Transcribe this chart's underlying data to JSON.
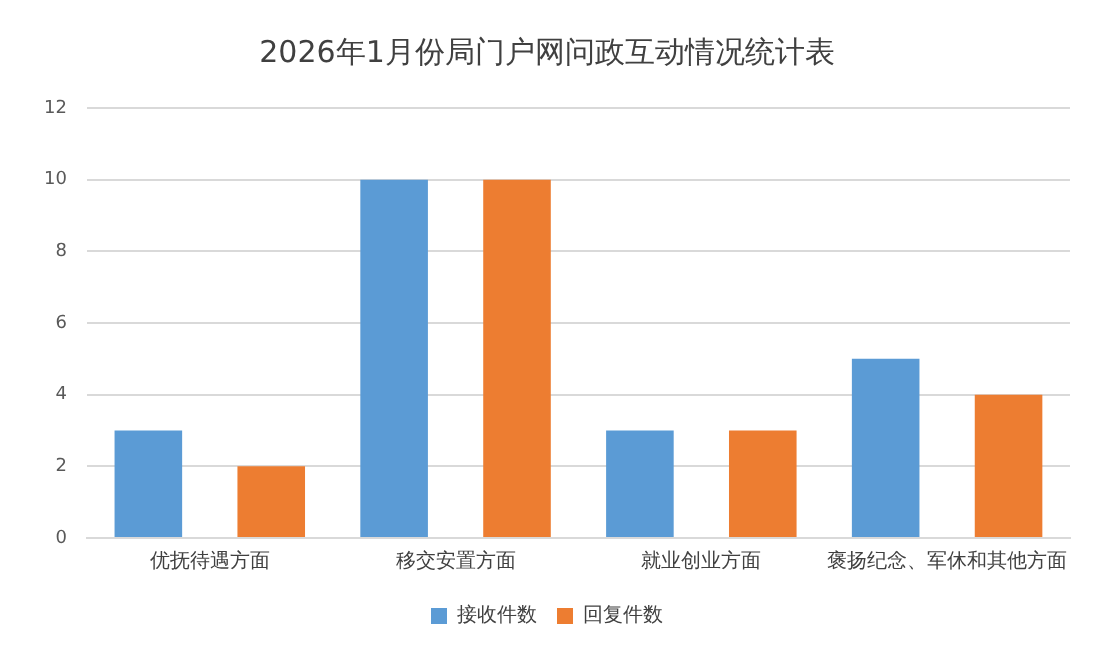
{
  "chart_data": {
    "type": "bar",
    "title": "2026年1月份局门户网问政互动情况统计表",
    "categories": [
      "优抚待遇方面",
      "移交安置方面",
      "就业创业方面",
      "褒扬纪念、军休和其他方面"
    ],
    "series": [
      {
        "name": "接收件数",
        "color": "#5b9bd5",
        "values": [
          3,
          10,
          3,
          5
        ]
      },
      {
        "name": "回复件数",
        "color": "#ed7d31",
        "values": [
          2,
          10,
          3,
          4
        ]
      }
    ],
    "ylim": [
      0,
      12
    ],
    "yticks": [
      0,
      2,
      4,
      6,
      8,
      10,
      12
    ],
    "grid": "y",
    "legend": "bottom"
  }
}
